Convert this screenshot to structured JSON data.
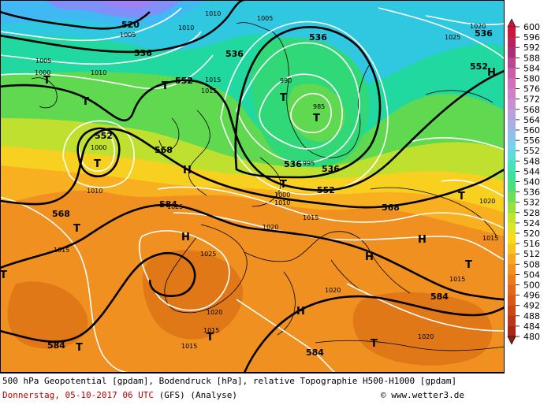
{
  "map": {
    "palette": [
      "#7a1a8a",
      "#8a2aa0",
      "#a030b5",
      "#c23ac4",
      "#d04ad6",
      "#dc60e2",
      "#c070f0",
      "#a080f4",
      "#8090f8",
      "#60a0fa",
      "#40b8f4",
      "#30c8e0",
      "#20d4c4",
      "#20d8a0",
      "#30d878",
      "#60d850",
      "#90dc40",
      "#c0e030",
      "#e8e020",
      "#f8d020",
      "#f8b020",
      "#f09020",
      "#e07818",
      "#d06818",
      "#c05818",
      "#b04818",
      "#a03818",
      "#902818",
      "#801818",
      "#701010",
      "#601010",
      "#d01040"
    ],
    "thick_contours": [
      "520",
      "536",
      "552",
      "568",
      "584"
    ],
    "thin_contours": [
      "1000",
      "1005",
      "1010",
      "1015",
      "1020",
      "1025",
      "990",
      "985",
      "995"
    ],
    "labels": {
      "c520": "520",
      "c536a": "536",
      "c536b": "536",
      "c536c": "536",
      "c536d": "536",
      "c536e": "536",
      "c536f": "536",
      "c552a": "552",
      "c552b": "552",
      "c552c": "552",
      "c552d": "552",
      "c568a": "568",
      "c568b": "568",
      "c568c": "568",
      "c584a": "584",
      "c584b": "584",
      "c584c": "584",
      "c584d": "584",
      "p1000a": "1000",
      "p1000b": "1000",
      "p1000c": "1000",
      "p1005a": "1005",
      "p1005b": "1005",
      "p1005c": "1005",
      "p1010a": "1010",
      "p1010b": "1010",
      "p1010c": "1010",
      "p1010d": "1010",
      "p1010e": "1010",
      "p1015a": "1015",
      "p1015b": "1015",
      "p1015c": "1015",
      "p1015d": "1015",
      "p1015e": "1015",
      "p1015f": "1015",
      "p1015g": "1015",
      "p1015h": "1015",
      "p1020a": "1020",
      "p1020b": "1020",
      "p1020c": "1020",
      "p1020d": "1020",
      "p1020e": "1020",
      "p1020f": "1020",
      "p1025a": "1025",
      "p1025b": "1025",
      "p1025c": "1025",
      "p985": "985",
      "p990": "990",
      "p995": "995",
      "T": "T",
      "H": "H"
    }
  },
  "scale": {
    "values": [
      "600",
      "596",
      "592",
      "588",
      "584",
      "580",
      "576",
      "572",
      "568",
      "564",
      "560",
      "556",
      "552",
      "548",
      "544",
      "540",
      "536",
      "532",
      "528",
      "524",
      "520",
      "516",
      "512",
      "508",
      "504",
      "500",
      "496",
      "492",
      "488",
      "484",
      "480"
    ],
    "colors": [
      "#c8183c",
      "#b8245a",
      "#a83078",
      "#b84890",
      "#c860a8",
      "#d070b8",
      "#d080c8",
      "#c890d0",
      "#b8a0d8",
      "#a8b0e0",
      "#90c0e8",
      "#78d0ec",
      "#60dcd8",
      "#48e0b8",
      "#40e098",
      "#50dc78",
      "#70dc58",
      "#98e040",
      "#c0e430",
      "#e0e428",
      "#f8dc20",
      "#f8c420",
      "#f8a820",
      "#f09020",
      "#e87c18",
      "#e06818",
      "#d85818",
      "#c84818",
      "#b83818",
      "#a82818",
      "#882018"
    ]
  },
  "footer": {
    "line1": "500 hPa Geopotential [gpdam], Bodendruck [hPa], relative Topographie H500-H1000 [gpdam]",
    "date": "Donnerstag, 05-10-2017  06 UTC",
    "model": "(GFS)   (Analyse)",
    "credit": "© www.wetter3.de"
  }
}
